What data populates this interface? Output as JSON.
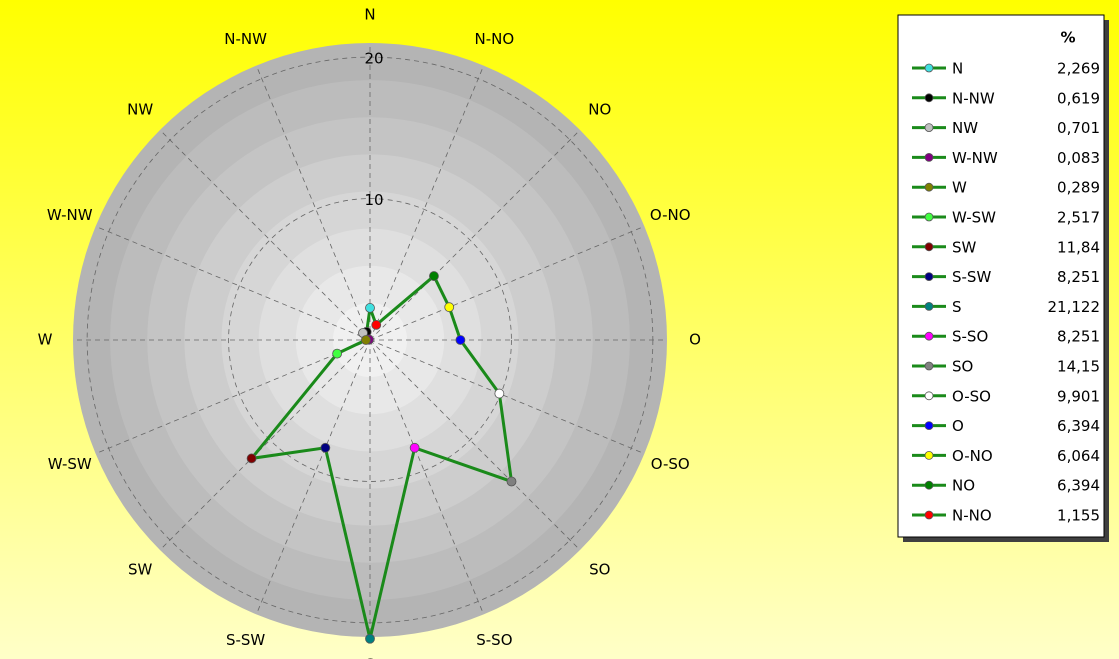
{
  "chart_data": {
    "type": "radar",
    "direction": "counterclockwise",
    "legend_header": "%",
    "categories": [
      "N",
      "N-NW",
      "NW",
      "W-NW",
      "W",
      "W-SW",
      "SW",
      "S-SW",
      "S",
      "S-SO",
      "SO",
      "O-SO",
      "O",
      "O-NO",
      "NO",
      "N-NO"
    ],
    "values": [
      2.269,
      0.619,
      0.701,
      0.083,
      0.289,
      2.517,
      11.84,
      8.251,
      21.122,
      8.251,
      14.15,
      9.901,
      6.394,
      6.064,
      6.394,
      1.155
    ],
    "value_labels": [
      "2,269",
      "0,619",
      "0,701",
      "0,083",
      "0,289",
      "2,517",
      "11,84",
      "8,251",
      "21,122",
      "8,251",
      "14,15",
      "9,901",
      "6,394",
      "6,064",
      "6,394",
      "1,155"
    ],
    "colors": [
      "#40e0e0",
      "#000000",
      "#c0c0c0",
      "#800080",
      "#808000",
      "#40ff40",
      "#800000",
      "#000080",
      "#008080",
      "#ff00ff",
      "#808080",
      "#ffffff",
      "#0000ff",
      "#ffff00",
      "#008000",
      "#ff0000"
    ],
    "line_color": "#1a8a1a",
    "rlim": [
      0,
      21
    ],
    "rticks": [
      10,
      20
    ],
    "grid": true
  }
}
